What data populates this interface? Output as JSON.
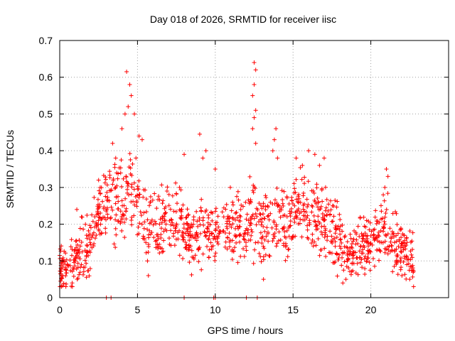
{
  "chart_data": {
    "type": "scatter",
    "title": "Day 018 of 2026, SRMTID for receiver iisc",
    "xlabel": "GPS time / hours",
    "ylabel": "SRMTID / TECUs",
    "xlim": [
      0,
      25
    ],
    "ylim": [
      0,
      0.7
    ],
    "xticks": [
      0,
      5,
      10,
      15,
      20
    ],
    "yticks": [
      0,
      0.1,
      0.2,
      0.3,
      0.4,
      0.5,
      0.6,
      0.7
    ],
    "xtick_labels": [
      "0",
      "5",
      "10",
      "15",
      "20"
    ],
    "ytick_labels": [
      "0",
      "0.1",
      "0.2",
      "0.3",
      "0.4",
      "0.5",
      "0.6",
      "0.7"
    ],
    "grid": true,
    "marker": "+",
    "marker_color": "#ff0000",
    "trend": [
      [
        0.0,
        0.08
      ],
      [
        0.5,
        0.07
      ],
      [
        1.0,
        0.11
      ],
      [
        1.5,
        0.13
      ],
      [
        2.0,
        0.15
      ],
      [
        2.5,
        0.22
      ],
      [
        3.0,
        0.24
      ],
      [
        3.5,
        0.26
      ],
      [
        4.0,
        0.27
      ],
      [
        4.5,
        0.3
      ],
      [
        5.0,
        0.24
      ],
      [
        5.5,
        0.2
      ],
      [
        6.0,
        0.18
      ],
      [
        6.5,
        0.19
      ],
      [
        7.0,
        0.2
      ],
      [
        7.5,
        0.22
      ],
      [
        8.0,
        0.18
      ],
      [
        8.5,
        0.15
      ],
      [
        9.0,
        0.18
      ],
      [
        9.5,
        0.17
      ],
      [
        10.0,
        0.16
      ],
      [
        10.5,
        0.19
      ],
      [
        11.0,
        0.18
      ],
      [
        11.5,
        0.2
      ],
      [
        12.0,
        0.2
      ],
      [
        12.5,
        0.21
      ],
      [
        13.0,
        0.18
      ],
      [
        13.5,
        0.2
      ],
      [
        14.0,
        0.22
      ],
      [
        14.5,
        0.18
      ],
      [
        15.0,
        0.22
      ],
      [
        15.5,
        0.26
      ],
      [
        16.0,
        0.24
      ],
      [
        16.5,
        0.22
      ],
      [
        17.0,
        0.21
      ],
      [
        17.5,
        0.18
      ],
      [
        18.0,
        0.15
      ],
      [
        18.5,
        0.13
      ],
      [
        19.0,
        0.14
      ],
      [
        19.5,
        0.15
      ],
      [
        20.0,
        0.14
      ],
      [
        20.5,
        0.16
      ],
      [
        21.0,
        0.18
      ],
      [
        21.5,
        0.16
      ],
      [
        22.0,
        0.13
      ],
      [
        22.5,
        0.1
      ],
      [
        22.8,
        0.09
      ]
    ],
    "points": [
      [
        4.3,
        0.615
      ],
      [
        4.5,
        0.58
      ],
      [
        4.6,
        0.55
      ],
      [
        4.4,
        0.52
      ],
      [
        4.2,
        0.5
      ],
      [
        4.0,
        0.46
      ],
      [
        3.4,
        0.42
      ],
      [
        3.6,
        0.38
      ],
      [
        4.8,
        0.5
      ],
      [
        5.1,
        0.44
      ],
      [
        5.3,
        0.43
      ],
      [
        4.9,
        0.38
      ],
      [
        12.5,
        0.64
      ],
      [
        12.6,
        0.62
      ],
      [
        12.5,
        0.58
      ],
      [
        12.4,
        0.55
      ],
      [
        12.6,
        0.51
      ],
      [
        12.5,
        0.49
      ],
      [
        12.4,
        0.46
      ],
      [
        12.6,
        0.42
      ],
      [
        9.0,
        0.445
      ],
      [
        9.4,
        0.4
      ],
      [
        9.2,
        0.38
      ],
      [
        10.0,
        0.35
      ],
      [
        13.9,
        0.46
      ],
      [
        13.8,
        0.43
      ],
      [
        13.7,
        0.4
      ],
      [
        14.0,
        0.38
      ],
      [
        8.0,
        0.39
      ],
      [
        7.7,
        0.3
      ],
      [
        16.0,
        0.4
      ],
      [
        16.4,
        0.39
      ],
      [
        17.0,
        0.38
      ],
      [
        16.7,
        0.36
      ],
      [
        15.2,
        0.38
      ],
      [
        15.6,
        0.36
      ],
      [
        21.0,
        0.35
      ],
      [
        21.1,
        0.33
      ],
      [
        20.9,
        0.3
      ],
      [
        20.8,
        0.28
      ],
      [
        2.5,
        0.32
      ],
      [
        2.6,
        0.3
      ],
      [
        3.0,
        0.0
      ],
      [
        3.3,
        0.0
      ],
      [
        8.0,
        0.0
      ],
      [
        9.9,
        0.0
      ],
      [
        10.0,
        0.0
      ],
      [
        12.0,
        0.0
      ],
      [
        12.7,
        0.0
      ],
      [
        0.8,
        0.04
      ],
      [
        0.2,
        0.06
      ],
      [
        5.7,
        0.06
      ],
      [
        13.1,
        0.05
      ],
      [
        18.2,
        0.04
      ],
      [
        18.4,
        0.05
      ],
      [
        22.5,
        0.05
      ],
      [
        22.0,
        0.06
      ],
      [
        0.0,
        0.115
      ],
      [
        1.1,
        0.24
      ],
      [
        1.4,
        0.22
      ]
    ]
  }
}
